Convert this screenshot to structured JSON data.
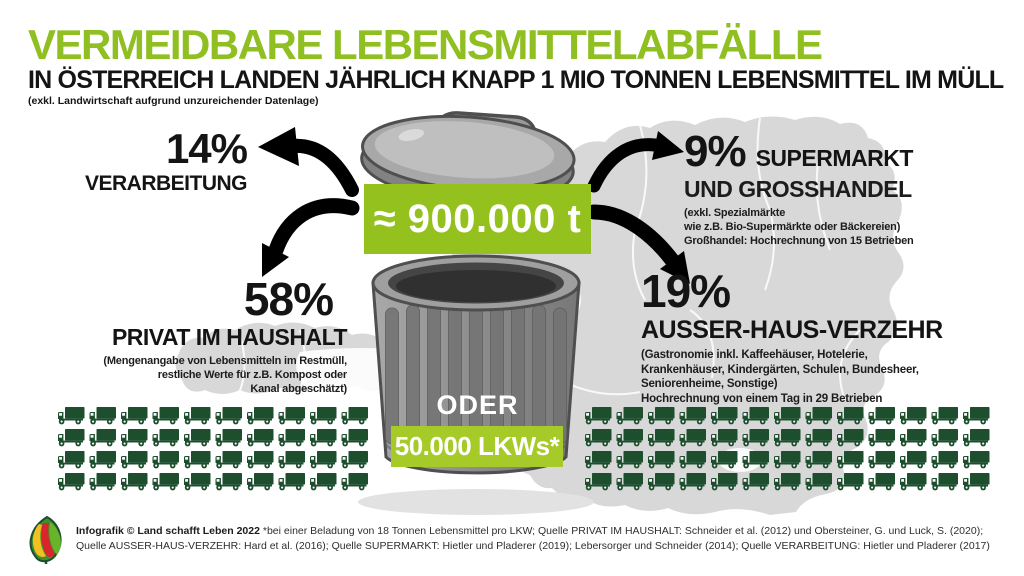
{
  "colors": {
    "accent_green": "#8fbf21",
    "banner_green": "#94c11d",
    "banner_light_green": "#a6ca28",
    "truck_green": "#1d4f2e",
    "map_gray": "#d8d8d8",
    "text_black": "#141414"
  },
  "header": {
    "title": "VERMEIDBARE LEBENSMITTELABFÄLLE",
    "subtitle": "IN ÖSTERREICH LANDEN JÄHRLICH KNAPP 1 MIO TONNEN LEBENSMITTEL IM MÜLL",
    "note": "(exkl. Landwirtschaft aufgrund unzureichender Datenlage)"
  },
  "central": {
    "amount": "≈ 900.000 t",
    "oder": "ODER",
    "trucks_label": "50.000 LKWs*"
  },
  "stats": {
    "verarbeitung": {
      "percent": "14%",
      "label": "VERARBEITUNG"
    },
    "supermarkt": {
      "percent": "9%",
      "label_line1": "SUPERMARKT",
      "label_line2": "UND GROSSHANDEL",
      "details": [
        "(exkl. Spezialmärkte",
        "wie z.B. Bio-Supermärkte oder Bäckereien)",
        "Großhandel: Hochrechnung von 15 Betrieben"
      ]
    },
    "haushalt": {
      "percent": "58%",
      "label": "PRIVAT IM HAUSHALT",
      "details": [
        "(Mengenangabe von Lebensmitteln im Restmüll,",
        "restliche Werte für z.B. Kompost oder",
        "Kanal abgeschätzt)"
      ]
    },
    "ausser_haus": {
      "percent": "19%",
      "label": "AUSSER-HAUS-VERZEHR",
      "details": [
        "(Gastronomie inkl. Kaffeehäuser, Hotelerie,",
        "Krankenhäuser, Kindergärten, Schulen, Bundesheer,",
        "Seniorenheime, Sonstige)",
        "Hochrechnung von einem Tag in 29 Betrieben"
      ]
    }
  },
  "trucks": {
    "rows": 4,
    "left_cols": 10,
    "right_cols": 13,
    "step_x": 31.5,
    "step_y": 22
  },
  "footer": {
    "credit": "Infografik © Land schafft Leben 2022",
    "sources_line1": "*bei einer Beladung von 18 Tonnen Lebensmittel pro LKW; Quelle PRIVAT IM HAUSHALT: Schneider et al. (2012) und Obersteiner, G. und Luck, S. (2020);",
    "sources_line2": "Quelle AUSSER-HAUS-VERZEHR: Hard et al. (2016); Quelle SUPERMARKT: Hietler und Pladerer (2019); Lebersorger und Schneider (2014); Quelle VERARBEITUNG: Hietler und Pladerer (2017)"
  }
}
